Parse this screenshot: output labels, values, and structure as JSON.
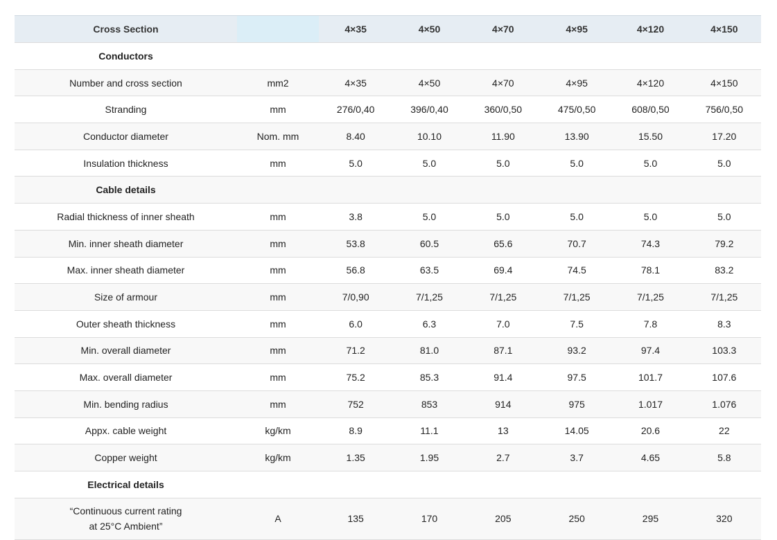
{
  "table": {
    "header": {
      "title": "Cross Section",
      "columns": [
        "4×35",
        "4×50",
        "4×70",
        "4×95",
        "4×120",
        "4×150"
      ]
    },
    "rows": [
      {
        "section": "Conductors"
      },
      {
        "label": "Number and cross section",
        "unit": "mm2",
        "values": [
          "4×35",
          "4×50",
          "4×70",
          "4×95",
          "4×120",
          "4×150"
        ]
      },
      {
        "label": "Stranding",
        "unit": "mm",
        "values": [
          "276/0,40",
          "396/0,40",
          "360/0,50",
          "475/0,50",
          "608/0,50",
          "756/0,50"
        ]
      },
      {
        "label": "Conductor diameter",
        "unit": "Nom. mm",
        "values": [
          "8.40",
          "10.10",
          "11.90",
          "13.90",
          "15.50",
          "17.20"
        ]
      },
      {
        "label": "Insulation thickness",
        "unit": "mm",
        "values": [
          "5.0",
          "5.0",
          "5.0",
          "5.0",
          "5.0",
          "5.0"
        ]
      },
      {
        "section": "Cable details"
      },
      {
        "label": "Radial thickness of inner sheath",
        "unit": "mm",
        "values": [
          "3.8",
          "5.0",
          "5.0",
          "5.0",
          "5.0",
          "5.0"
        ]
      },
      {
        "label": "Min. inner sheath diameter",
        "unit": "mm",
        "values": [
          "53.8",
          "60.5",
          "65.6",
          "70.7",
          "74.3",
          "79.2"
        ]
      },
      {
        "label": "Max. inner sheath diameter",
        "unit": "mm",
        "values": [
          "56.8",
          "63.5",
          "69.4",
          "74.5",
          "78.1",
          "83.2"
        ]
      },
      {
        "label": "Size of armour",
        "unit": "mm",
        "values": [
          "7/0,90",
          "7/1,25",
          "7/1,25",
          "7/1,25",
          "7/1,25",
          "7/1,25"
        ]
      },
      {
        "label": "Outer sheath thickness",
        "unit": "mm",
        "values": [
          "6.0",
          "6.3",
          "7.0",
          "7.5",
          "7.8",
          "8.3"
        ]
      },
      {
        "label": "Min. overall diameter",
        "unit": "mm",
        "values": [
          "71.2",
          "81.0",
          "87.1",
          "93.2",
          "97.4",
          "103.3"
        ]
      },
      {
        "label": "Max. overall diameter",
        "unit": "mm",
        "values": [
          "75.2",
          "85.3",
          "91.4",
          "97.5",
          "101.7",
          "107.6"
        ]
      },
      {
        "label": "Min. bending radius",
        "unit": "mm",
        "values": [
          "752",
          "853",
          "914",
          "975",
          "1.017",
          "1.076"
        ]
      },
      {
        "label": "Appx. cable weight",
        "unit": "kg/km",
        "values": [
          "8.9",
          "11.1",
          "13",
          "14.05",
          "20.6",
          "22"
        ]
      },
      {
        "label": "Copper weight",
        "unit": "kg/km",
        "values": [
          "1.35",
          "1.95",
          "2.7",
          "3.7",
          "4.65",
          "5.8"
        ]
      },
      {
        "section": "Electrical details"
      },
      {
        "label": "“Continuous current rating at 25°C Ambient”",
        "unit": "A",
        "values": [
          "135",
          "170",
          "205",
          "250",
          "295",
          "320"
        ]
      }
    ]
  }
}
